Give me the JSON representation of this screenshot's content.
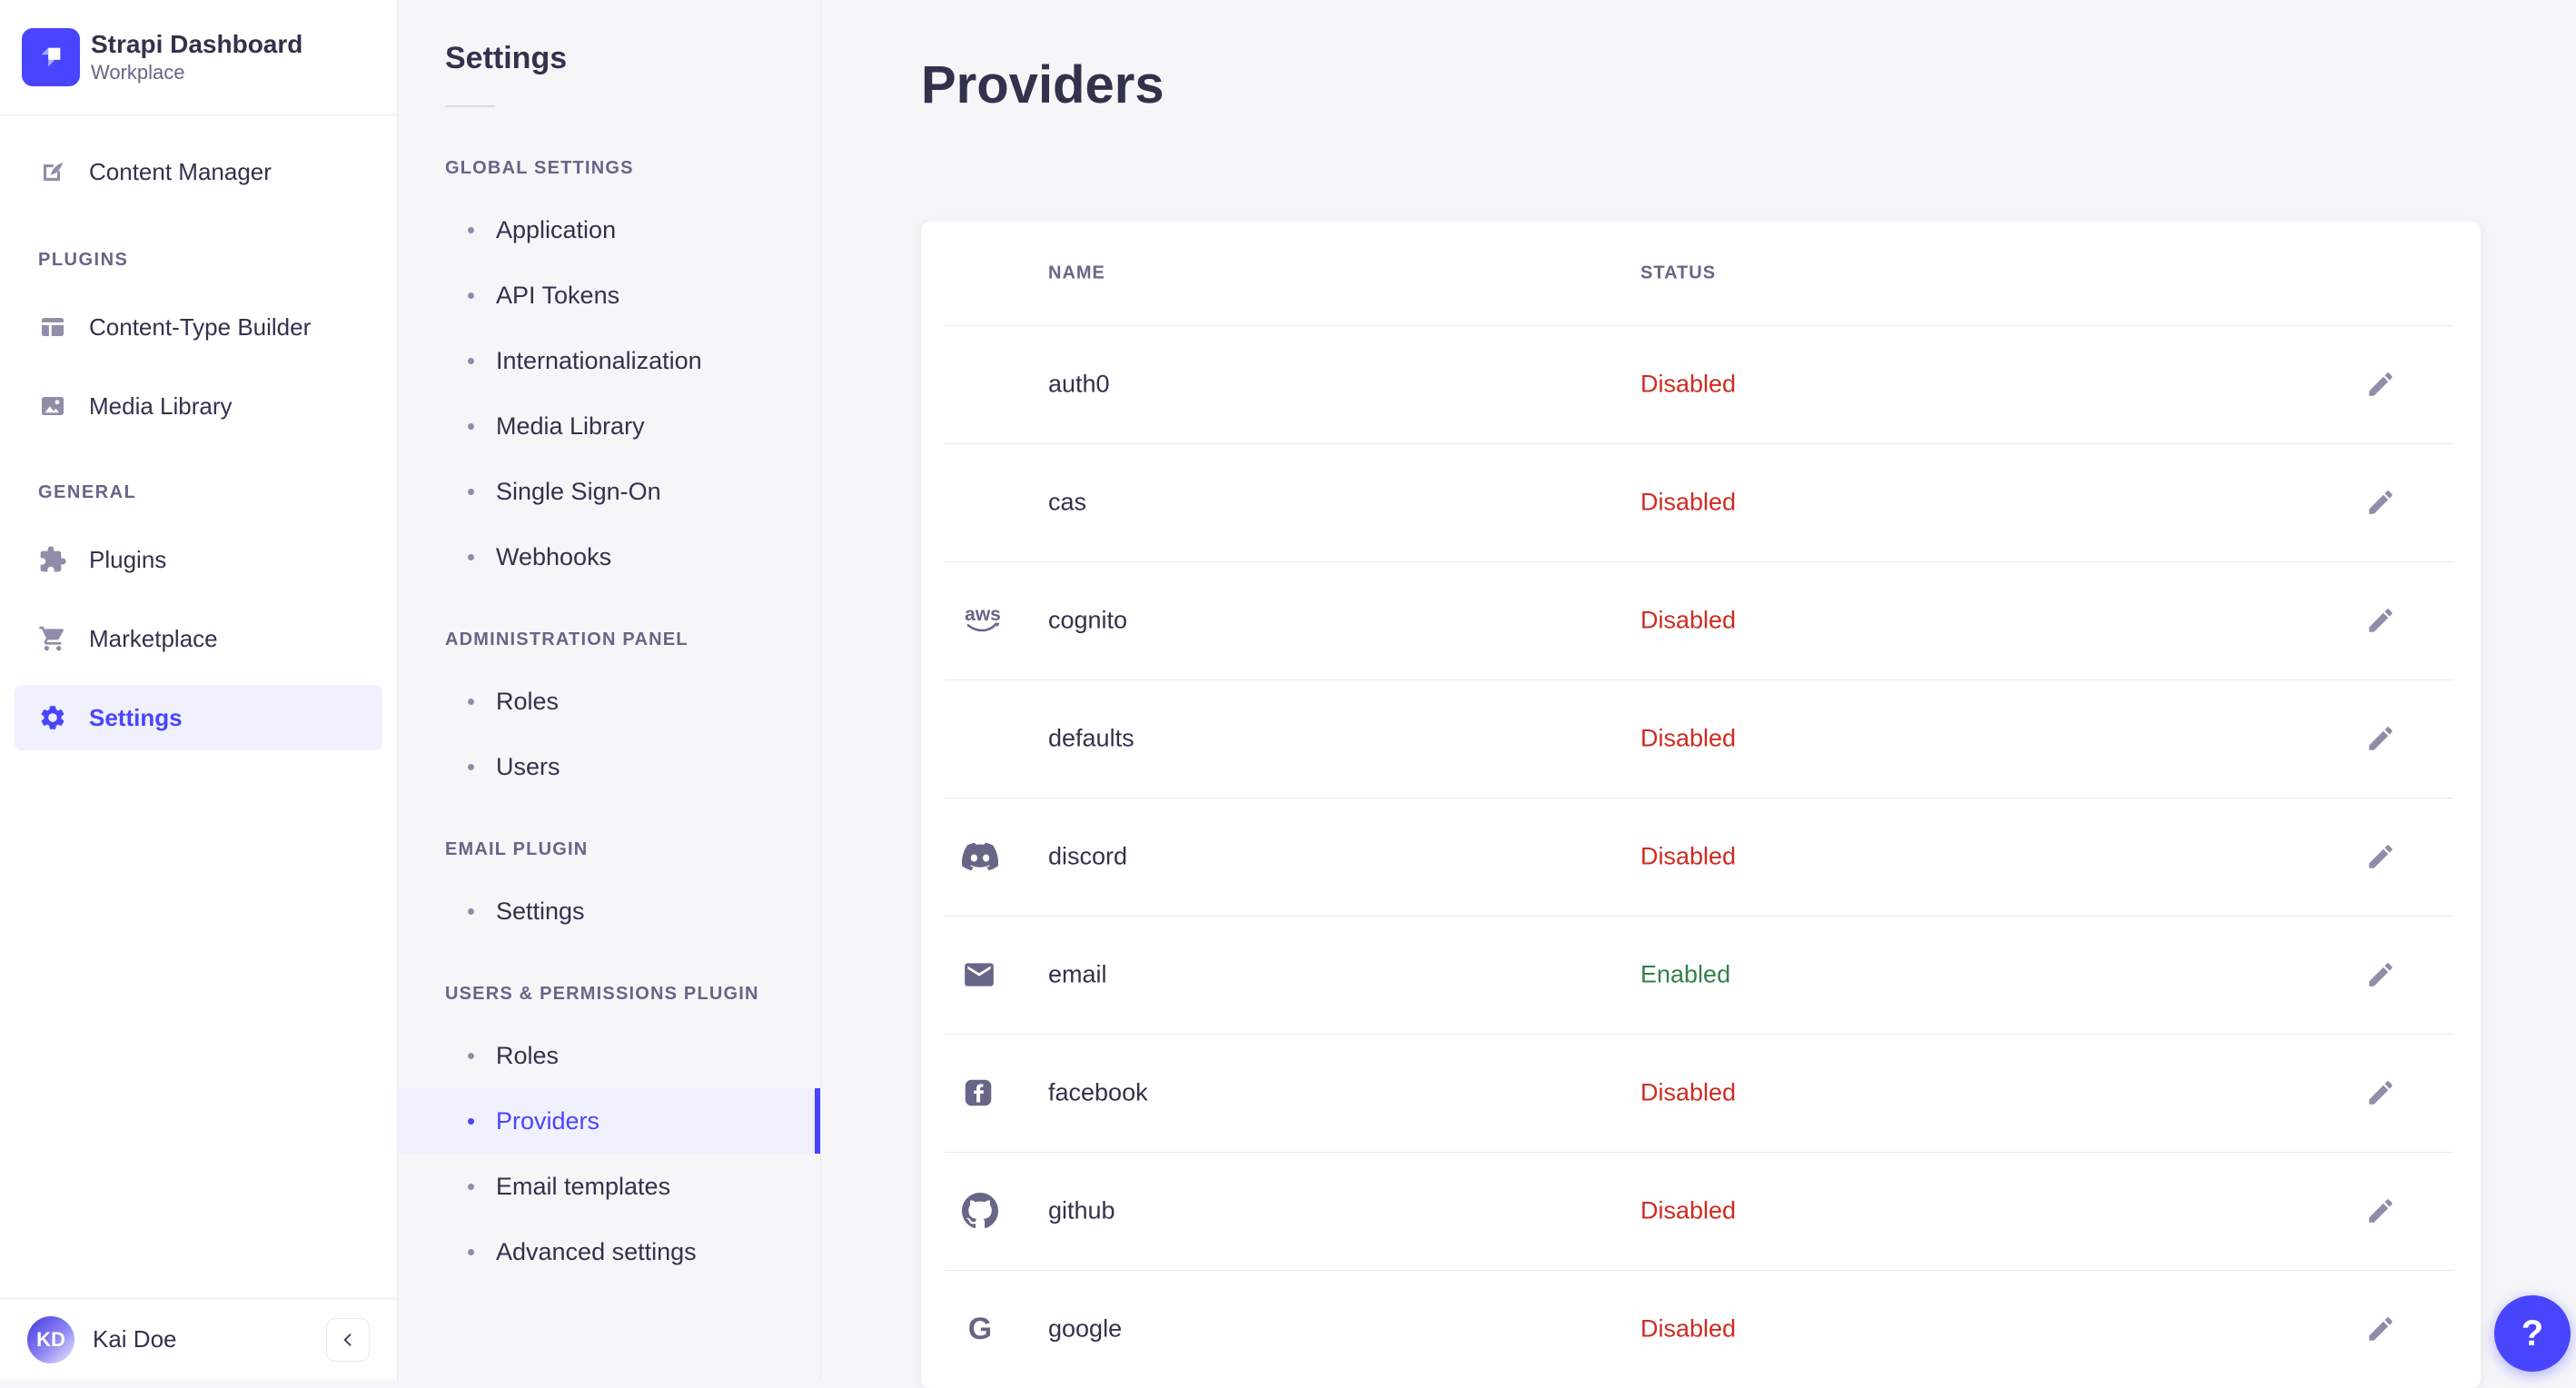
{
  "brand": {
    "title": "Strapi Dashboard",
    "subtitle": "Workplace"
  },
  "main_sidebar": {
    "content_manager": "Content Manager",
    "sections": [
      {
        "label": "PLUGINS",
        "items": [
          "Content-Type Builder",
          "Media Library"
        ]
      },
      {
        "label": "GENERAL",
        "items": [
          "Plugins",
          "Marketplace",
          "Settings"
        ]
      }
    ],
    "active_item": "Settings",
    "user": {
      "name": "Kai Doe",
      "initials": "KD"
    }
  },
  "settings_nav": {
    "title": "Settings",
    "sections": [
      {
        "label": "GLOBAL SETTINGS",
        "items": [
          "Application",
          "API Tokens",
          "Internationalization",
          "Media Library",
          "Single Sign-On",
          "Webhooks"
        ]
      },
      {
        "label": "ADMINISTRATION PANEL",
        "items": [
          "Roles",
          "Users"
        ]
      },
      {
        "label": "EMAIL PLUGIN",
        "items": [
          "Settings"
        ]
      },
      {
        "label": "USERS & PERMISSIONS PLUGIN",
        "items": [
          "Roles",
          "Providers",
          "Email templates",
          "Advanced settings"
        ]
      }
    ],
    "active_item": "Providers"
  },
  "main": {
    "title": "Providers",
    "table": {
      "columns": [
        "NAME",
        "STATUS"
      ],
      "rows": [
        {
          "name": "auth0",
          "icon": null,
          "status": "Disabled"
        },
        {
          "name": "cas",
          "icon": null,
          "status": "Disabled"
        },
        {
          "name": "cognito",
          "icon": "aws",
          "status": "Disabled"
        },
        {
          "name": "defaults",
          "icon": null,
          "status": "Disabled"
        },
        {
          "name": "discord",
          "icon": "discord",
          "status": "Disabled"
        },
        {
          "name": "email",
          "icon": "envelope",
          "status": "Enabled"
        },
        {
          "name": "facebook",
          "icon": "facebook",
          "status": "Disabled"
        },
        {
          "name": "github",
          "icon": "github",
          "status": "Disabled"
        },
        {
          "name": "google",
          "icon": "google",
          "status": "Disabled"
        }
      ]
    },
    "status_colors": {
      "Enabled": "#328048",
      "Disabled": "#d02b20"
    }
  },
  "colors": {
    "accent": "#4945ff",
    "accent_bg": "#f0f0ff",
    "text": "#32324d",
    "muted": "#666687",
    "icon": "#8e8ea9",
    "border": "#eaeaef",
    "panel_bg": "#f6f6f9"
  },
  "help_button": {
    "label": "?"
  }
}
